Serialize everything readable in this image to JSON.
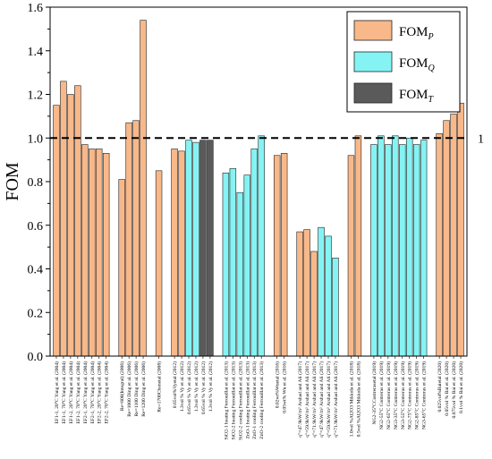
{
  "chart_data": {
    "type": "bar",
    "ylabel": "FOM",
    "ylim": [
      0,
      1.6
    ],
    "yticks": [
      0.0,
      0.2,
      0.4,
      0.6,
      0.8,
      1.0,
      1.2,
      1.4,
      1.6
    ],
    "reference_line": {
      "value": 1.0,
      "label": "1",
      "style": "dashed"
    },
    "legend": {
      "placement": "top-right",
      "entries": [
        {
          "base": "FOM",
          "sub": "P",
          "color": "#f8b889"
        },
        {
          "base": "FOM",
          "sub": "Q",
          "color": "#85f3f3"
        },
        {
          "base": "FOM",
          "sub": "T",
          "color": "#5a5a5a"
        }
      ]
    },
    "bars": [
      {
        "label": "EF1-1, 20°C Yang et al. (2004)",
        "value": 1.15,
        "series": "P",
        "group": 0
      },
      {
        "label": "EF1-1, 70°C Yang et al. (2004)",
        "value": 1.26,
        "series": "P",
        "group": 0
      },
      {
        "label": "EF1-2, 20°C Yang et al. (2004)",
        "value": 1.2,
        "series": "P",
        "group": 0
      },
      {
        "label": "EF1-2, 70°C Yang et al. (2004)",
        "value": 1.24,
        "series": "P",
        "group": 0
      },
      {
        "label": "EF2-1, 20°C Yang et al. (2004)",
        "value": 0.97,
        "series": "P",
        "group": 0
      },
      {
        "label": "EF2-1, 70°C Yang et al. (2004)",
        "value": 0.95,
        "series": "P",
        "group": 0
      },
      {
        "label": "EF2-2, 20°C Yang et al. (2004)",
        "value": 0.95,
        "series": "P",
        "group": 0
      },
      {
        "label": "EF2-2, 70°C Yang et al. (2004)",
        "value": 0.93,
        "series": "P",
        "group": 0
      },
      {
        "label": "Re=800(Integral) (2006)",
        "value": 0.81,
        "series": "P",
        "group": 1
      },
      {
        "label": "Re=1000 Ding et al. (2006)",
        "value": 1.07,
        "series": "P",
        "group": 1
      },
      {
        "label": "Re=1100 Ding et al. (2006)",
        "value": 1.08,
        "series": "P",
        "group": 1
      },
      {
        "label": "Re=1200 Ding et al. (2006)",
        "value": 1.54,
        "series": "P",
        "group": 1
      },
      {
        "label": "Re=1700Chenetal (2008)",
        "value": 0.85,
        "series": "P",
        "group": 2
      },
      {
        "label": "0.65vol%Vyetal (2012)",
        "value": 0.95,
        "series": "P",
        "group": 3
      },
      {
        "label": "1.3vol % Vy et al. (2012)",
        "value": 0.94,
        "series": "P",
        "group": 3
      },
      {
        "label": "0.65vol % Vy et al. (2012)",
        "value": 0.99,
        "series": "Q",
        "group": 3
      },
      {
        "label": "1.3vol % Vy et al. (2012)",
        "value": 0.98,
        "series": "Q",
        "group": 3
      },
      {
        "label": "0.65vol % Vy et al. (2012)",
        "value": 0.99,
        "series": "T",
        "group": 3
      },
      {
        "label": "1.3vol % Vy et al. (2012)",
        "value": 0.99,
        "series": "T",
        "group": 3
      },
      {
        "label": "SiO2-1 heating Ferrouillat et al. (2013)",
        "value": 0.84,
        "series": "Q",
        "group": 4
      },
      {
        "label": "SiO2-2 heating Ferrouillat et al. (2013)",
        "value": 0.86,
        "series": "Q",
        "group": 4
      },
      {
        "label": "SiO2-2 cooling Ferrouillat et al. (2013)",
        "value": 0.75,
        "series": "Q",
        "group": 4
      },
      {
        "label": "ZnO-1 heating Ferrouillat et al. (2013)",
        "value": 0.83,
        "series": "Q",
        "group": 4
      },
      {
        "label": "ZnO-1 cooling Ferrouillat et al. (2013)",
        "value": 0.95,
        "series": "Q",
        "group": 4
      },
      {
        "label": "ZnO-2 cooling Ferrouillat et al. (2013)",
        "value": 1.01,
        "series": "Q",
        "group": 4
      },
      {
        "label": "0.02wt%Wuetal (2016)",
        "value": 0.92,
        "series": "P",
        "group": 5
      },
      {
        "label": "0.05wt% Wu et al. (2016)",
        "value": 0.93,
        "series": "P",
        "group": 5
      },
      {
        "label": "q''=47.9kW/m² Arshad and Ali (2017)",
        "value": 0.57,
        "series": "P",
        "group": 6
      },
      {
        "label": "q''=59.9kW/m² Arshad and Ali (2017)",
        "value": 0.58,
        "series": "P",
        "group": 6
      },
      {
        "label": "q''=71.9kW/m² Arshad and Ali (2017)",
        "value": 0.48,
        "series": "P",
        "group": 6
      },
      {
        "label": "q''=47.9kW/m² Arshad and Ali (2017)",
        "value": 0.59,
        "series": "Q",
        "group": 6
      },
      {
        "label": "q''=59.9kW/m² Arshad and Ali (2017)",
        "value": 0.55,
        "series": "Q",
        "group": 6
      },
      {
        "label": "q''=71.9kW/m² Arshad and Ali (2017)",
        "value": 0.45,
        "series": "Q",
        "group": 6
      },
      {
        "label": "1.0vol %Al2O3 Mikkola et al. (2018)",
        "value": 0.92,
        "series": "P",
        "group": 7
      },
      {
        "label": "0.5vol %Al2O3 Mikkola et al. (2018)",
        "value": 1.01,
        "series": "P",
        "group": 7
      },
      {
        "label": "NG2-35°CContrerasetal (2019)",
        "value": 0.97,
        "series": "Q",
        "group": 8
      },
      {
        "label": "NG2-55°C Contreras et al. (2019)",
        "value": 1.01,
        "series": "Q",
        "group": 8
      },
      {
        "label": "NG2-65°C Contreras et al. (2019)",
        "value": 0.97,
        "series": "Q",
        "group": 8
      },
      {
        "label": "NG3-35°C Contreras et al. (2019)",
        "value": 1.01,
        "series": "Q",
        "group": 8
      },
      {
        "label": "NG3-55°C Contreras et al. (2019)",
        "value": 0.97,
        "series": "Q",
        "group": 8
      },
      {
        "label": "NG2-75°C Contreras et al. (2019)",
        "value": 1.0,
        "series": "Q",
        "group": 8
      },
      {
        "label": "NG2-85°C Contreras et al. (2019)",
        "value": 0.97,
        "series": "Q",
        "group": 8
      },
      {
        "label": "NG3-65°C Contreras et al. (2019)",
        "value": 0.99,
        "series": "Q",
        "group": 8
      },
      {
        "label": "0.025vol%Baietal (2020)",
        "value": 1.02,
        "series": "P",
        "group": 9
      },
      {
        "label": "0.05vol % Bai et al. (2020)",
        "value": 1.08,
        "series": "P",
        "group": 9
      },
      {
        "label": "0.075vol % Bai et al. (2020)",
        "value": 1.11,
        "series": "P",
        "group": 9
      },
      {
        "label": "0.1vol % Bai et al. (2020)",
        "value": 1.16,
        "series": "P",
        "group": 9
      }
    ]
  }
}
